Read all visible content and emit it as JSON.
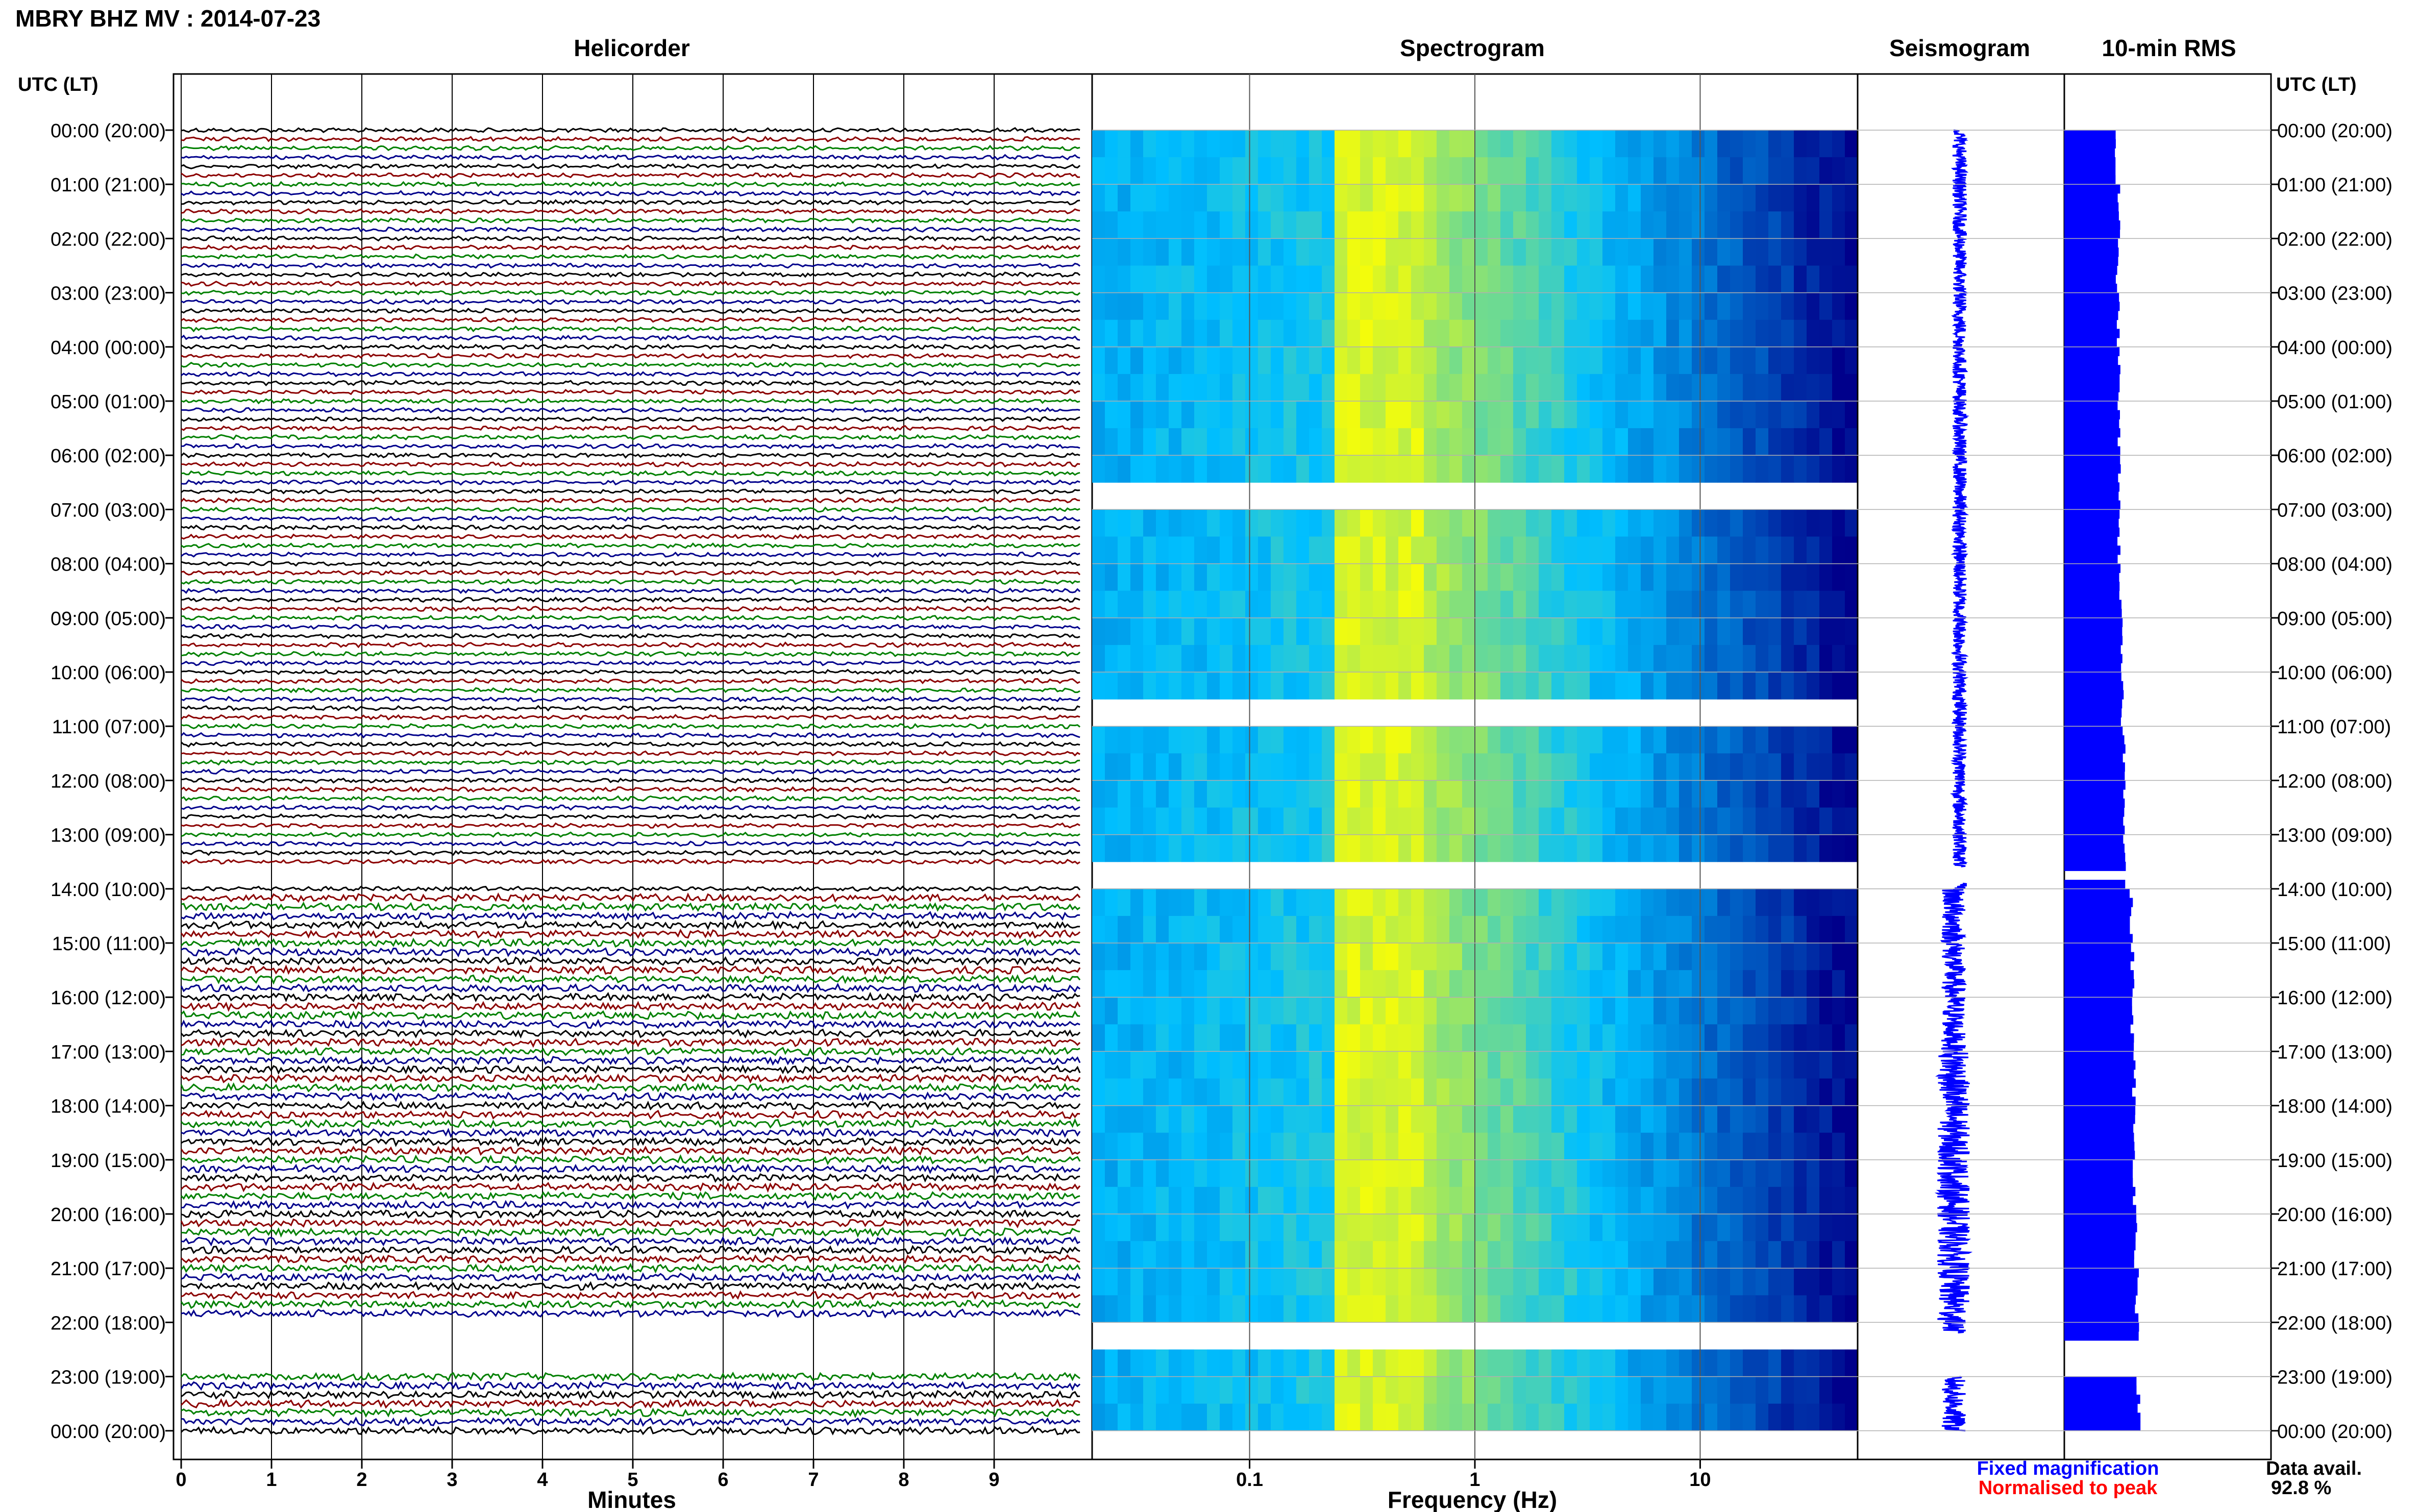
{
  "header": {
    "title": "MBRY BHZ MV : 2014-07-23",
    "utc_label_left": "UTC (LT)",
    "utc_label_right": "UTC (LT)"
  },
  "panels": {
    "helicorder": "Helicorder",
    "spectrogram": "Spectrogram",
    "seismogram": "Seismogram",
    "rms": "10-min RMS"
  },
  "footer": {
    "xlabel_helicorder": "Minutes",
    "xlabel_spectrogram": "Frequency (Hz)",
    "legend_fixed": "Fixed magnification",
    "legend_normalised": "Normalised to peak",
    "data_avail_label": "Data avail.",
    "data_avail_value": "92.8 %"
  },
  "colors": {
    "fixed": "#0000ff",
    "normalised": "#ff0000",
    "trace_cycle": [
      "#000000",
      "#8b0000",
      "#008000",
      "#00008b"
    ],
    "spectro_low": "#00008b",
    "spectro_mid": "#00bfff",
    "spectro_high": "#ffff00",
    "rms_fill": "#0000ff"
  },
  "chart_data": [
    {
      "type": "line",
      "name_key": "helicorder",
      "y_tick_labels": [
        "00:00 (20:00)",
        "01:00 (21:00)",
        "02:00 (22:00)",
        "03:00 (23:00)",
        "04:00 (00:00)",
        "05:00 (01:00)",
        "06:00 (02:00)",
        "07:00 (03:00)",
        "08:00 (04:00)",
        "09:00 (05:00)",
        "10:00 (06:00)",
        "11:00 (07:00)",
        "12:00 (08:00)",
        "13:00 (09:00)",
        "14:00 (10:00)",
        "15:00 (11:00)",
        "16:00 (12:00)",
        "17:00 (13:00)",
        "18:00 (14:00)",
        "19:00 (15:00)",
        "20:00 (16:00)",
        "21:00 (17:00)",
        "22:00 (18:00)",
        "23:00 (19:00)",
        "00:00 (20:00)"
      ],
      "x_ticks": [
        0,
        1,
        2,
        3,
        4,
        5,
        6,
        7,
        8,
        9
      ],
      "xlim": [
        0,
        10
      ],
      "xlabel": "Minutes",
      "gaps_hours": [
        [
          13.6,
          14.0
        ],
        [
          22.0,
          23.0
        ]
      ]
    },
    {
      "type": "heatmap",
      "name_key": "spectrogram",
      "x_scale": "log",
      "xlim": [
        0.02,
        50
      ],
      "x_ticks": [
        0.1,
        1,
        10
      ],
      "x_tick_labels": [
        "0.1",
        "1",
        "10"
      ],
      "xlabel": "Frequency (Hz)",
      "peak_band_hz": [
        0.25,
        0.6
      ],
      "gap_rows_hours": [
        6.6,
        10.4,
        13.6,
        22.0
      ]
    },
    {
      "type": "line",
      "name_key": "seismogram",
      "gaps_hours": [
        [
          13.6,
          13.9
        ],
        [
          22.2,
          23.0
        ]
      ]
    },
    {
      "type": "bar",
      "name_key": "rms",
      "orientation": "horizontal",
      "hours": [
        0,
        1,
        2,
        3,
        4,
        5,
        6,
        7,
        8,
        9,
        10,
        11,
        12,
        13,
        14,
        15,
        16,
        17,
        18,
        19,
        20,
        21,
        22,
        23
      ],
      "values": [
        0.68,
        0.72,
        0.7,
        0.71,
        0.72,
        0.72,
        0.73,
        0.72,
        0.74,
        0.75,
        0.76,
        0.79,
        0.8,
        0.8,
        0.88,
        0.9,
        0.9,
        0.92,
        0.92,
        0.93,
        0.95,
        0.96,
        0.96,
        0.98
      ],
      "gaps_hours": [
        [
          13.6,
          13.8
        ],
        [
          22.2,
          23.0
        ]
      ]
    }
  ]
}
